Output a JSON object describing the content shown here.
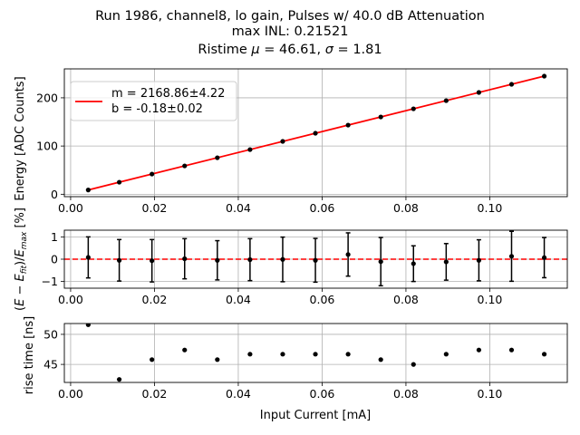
{
  "title": {
    "line1": "Run 1986, channel8, lo gain, Pulses w/ 40.0 dB Attenuation",
    "line2": "max INL: 0.21521",
    "line3_prefix": "Ristime ",
    "mu_symbol": "μ",
    "line3_mid": " = 46.61, ",
    "sigma_symbol": "σ",
    "line3_suffix": " = 1.81"
  },
  "colors": {
    "fit_line": "#ff0000",
    "points": "#000000",
    "grid": "#b0b0b0"
  },
  "chart_data": [
    {
      "type": "line",
      "name": "energy-vs-current",
      "ylabel": "Energy [ADC Counts]",
      "xlabel": "",
      "xlim": [
        -0.0015,
        0.1185
      ],
      "ylim": [
        -5,
        260
      ],
      "xticks": [
        0.0,
        0.02,
        0.04,
        0.06,
        0.08,
        0.1
      ],
      "xtick_labels": [
        "0.00",
        "0.02",
        "0.04",
        "0.06",
        "0.08",
        "0.10"
      ],
      "yticks": [
        0,
        100,
        200
      ],
      "ytick_labels": [
        "0",
        "100",
        "200"
      ],
      "grid": true,
      "legend_position": "top-left",
      "legend": [
        {
          "label_line1": "m = 2168.86±4.22",
          "label_line2": "b = -0.18±0.02"
        }
      ],
      "x": [
        0.0042,
        0.0116,
        0.0194,
        0.0272,
        0.035,
        0.0428,
        0.0506,
        0.0584,
        0.0662,
        0.074,
        0.0818,
        0.0896,
        0.0974,
        0.1052,
        0.113
      ],
      "y": [
        8.9,
        25.0,
        41.9,
        58.8,
        75.7,
        92.6,
        109.6,
        126.5,
        143.4,
        160.3,
        177.2,
        194.1,
        211.1,
        228.0,
        244.9
      ],
      "fit": {
        "m": 2168.86,
        "b": -0.18
      }
    },
    {
      "type": "scatter",
      "name": "inl-residuals",
      "ylabel_parts": [
        "(",
        "E",
        " − ",
        "E",
        "fit",
        ")/",
        "E",
        "max",
        " [%]"
      ],
      "xlim": [
        -0.0015,
        0.1185
      ],
      "ylim": [
        -1.3,
        1.3
      ],
      "xticks": [
        0.0,
        0.02,
        0.04,
        0.06,
        0.08,
        0.1
      ],
      "xtick_labels": [
        "0.00",
        "0.02",
        "0.04",
        "0.06",
        "0.08",
        "0.10"
      ],
      "yticks": [
        -1,
        0,
        1
      ],
      "ytick_labels": [
        "−1",
        "0",
        "1"
      ],
      "grid": true,
      "zero_line": 0,
      "x": [
        0.0042,
        0.0116,
        0.0194,
        0.0272,
        0.035,
        0.0428,
        0.0506,
        0.0584,
        0.0662,
        0.074,
        0.0818,
        0.0896,
        0.0974,
        0.1052,
        0.113
      ],
      "y": [
        0.08,
        -0.05,
        -0.07,
        0.02,
        -0.05,
        -0.02,
        -0.01,
        -0.05,
        0.21,
        -0.11,
        -0.2,
        -0.12,
        -0.05,
        0.13,
        0.07
      ],
      "yerr": [
        0.92,
        0.93,
        0.95,
        0.9,
        0.88,
        0.94,
        1.0,
        0.98,
        0.97,
        1.08,
        0.8,
        0.82,
        0.92,
        1.12,
        0.9
      ]
    },
    {
      "type": "scatter",
      "name": "rise-time",
      "ylabel": "rise time [ns]",
      "xlabel": "Input Current [mA]",
      "xlim": [
        -0.0015,
        0.1185
      ],
      "ylim": [
        42.0,
        51.8
      ],
      "xticks": [
        0.0,
        0.02,
        0.04,
        0.06,
        0.08,
        0.1
      ],
      "xtick_labels": [
        "0.00",
        "0.02",
        "0.04",
        "0.06",
        "0.08",
        "0.10"
      ],
      "yticks": [
        45,
        50
      ],
      "ytick_labels": [
        "45",
        "50"
      ],
      "grid": true,
      "x": [
        0.0042,
        0.0116,
        0.0194,
        0.0272,
        0.035,
        0.0428,
        0.0506,
        0.0584,
        0.0662,
        0.074,
        0.0818,
        0.0896,
        0.0974,
        0.1052,
        0.113
      ],
      "y": [
        51.6,
        42.5,
        45.8,
        47.4,
        45.8,
        46.7,
        46.7,
        46.7,
        46.7,
        45.8,
        45.0,
        46.7,
        47.4,
        47.4,
        46.7
      ]
    }
  ]
}
